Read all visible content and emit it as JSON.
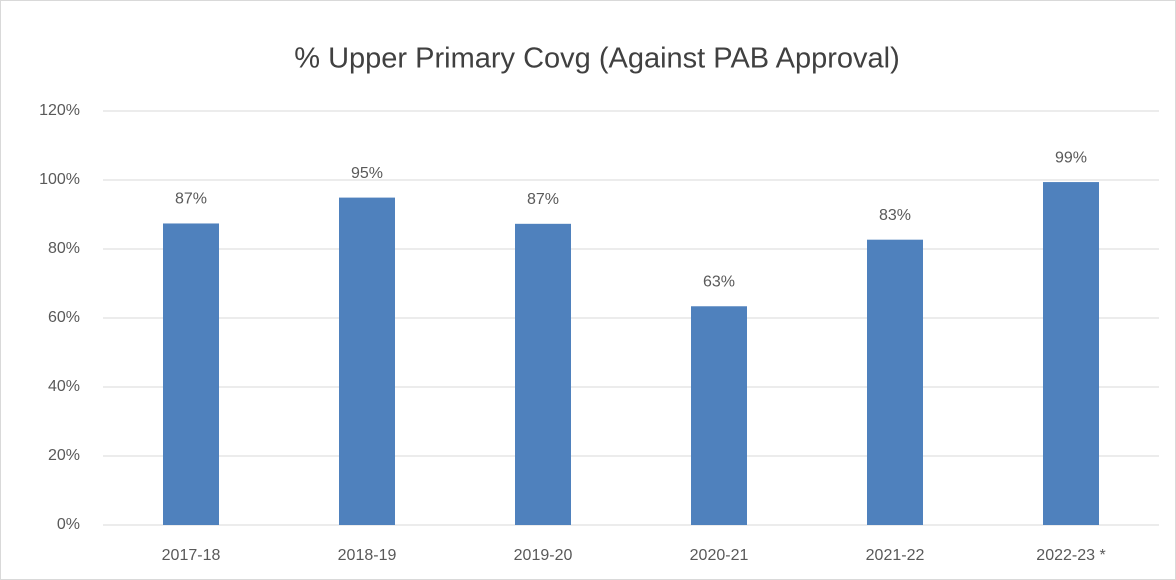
{
  "chart_data": {
    "type": "bar",
    "title": "%  Upper Primary Covg (Against PAB Approval)",
    "categories": [
      "2017-18",
      "2018-19",
      "2019-20",
      "2020-21",
      "2021-22",
      "2022-23 *"
    ],
    "values": [
      87.4,
      94.9,
      87.3,
      63.4,
      82.7,
      99.4
    ],
    "value_labels": [
      "87%",
      "95%",
      "87%",
      "63%",
      "83%",
      "99%"
    ],
    "color": "#4f81bd",
    "ylim": [
      0,
      120
    ],
    "yticks": [
      {
        "value": 0,
        "label": "0%"
      },
      {
        "value": 20,
        "label": "20%"
      },
      {
        "value": 40,
        "label": "40%"
      },
      {
        "value": 60,
        "label": "60%"
      },
      {
        "value": 80,
        "label": "80%"
      },
      {
        "value": 100,
        "label": "100%"
      },
      {
        "value": 120,
        "label": "120%"
      }
    ],
    "grid": true
  }
}
